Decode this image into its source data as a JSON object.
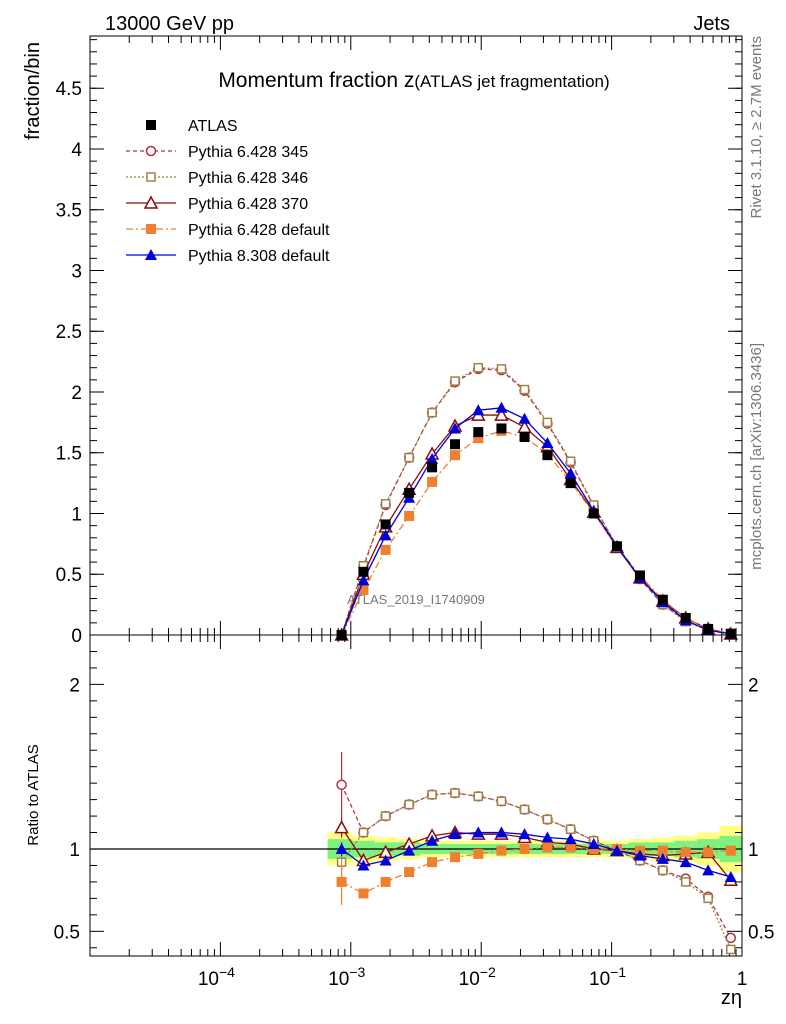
{
  "header": {
    "left": "13000 GeV pp",
    "right": "Jets"
  },
  "side": {
    "rivet": "Rivet 3.1.10, ≥ 2.7M events",
    "mcplots": "mcplots.cern.ch [arXiv:1306.3436]"
  },
  "watermark": "ATLAS_2019_I1740909",
  "colors": {
    "atlas": "#000000",
    "p345": "#b0303a",
    "p346": "#a0804a",
    "p370": "#8b0a0a",
    "p6def": "#f08030",
    "p8def": "#0000d8",
    "band_inner": "#80f080",
    "band_outer": "#ffff80"
  },
  "chart_data": [
    {
      "type": "scatter",
      "title_main": "Momentum fraction ",
      "title_z": "z",
      "title_sub": "(ATLAS jet fragmentation)",
      "ylabel": "fraction/bin",
      "xscale": "log",
      "xlim": [
        1e-05,
        1
      ],
      "ylim": [
        0,
        4.93
      ],
      "yticks": [
        "0",
        "0.5",
        "1",
        "1.5",
        "2",
        "2.5",
        "3",
        "3.5",
        "4",
        "4.5"
      ],
      "legend_position": "top-left",
      "x": [
        0.00085,
        0.00125,
        0.00185,
        0.0028,
        0.0042,
        0.0063,
        0.0095,
        0.0143,
        0.0215,
        0.0322,
        0.0485,
        0.073,
        0.11,
        0.165,
        0.247,
        0.37,
        0.55,
        0.82
      ],
      "series": [
        {
          "name": "ATLAS",
          "marker": "square-filled",
          "values": [
            0.0,
            0.52,
            0.91,
            1.17,
            1.38,
            1.57,
            1.67,
            1.7,
            1.63,
            1.48,
            1.25,
            1.0,
            0.73,
            0.49,
            0.29,
            0.14,
            0.05,
            0.01
          ]
        },
        {
          "name": "Pythia 6.428 345",
          "marker": "circle-open",
          "values": [
            0.0,
            0.56,
            1.07,
            1.46,
            1.83,
            2.08,
            2.19,
            2.18,
            2.01,
            1.74,
            1.42,
            1.06,
            0.73,
            0.46,
            0.25,
            0.12,
            0.04,
            0.005
          ]
        },
        {
          "name": "Pythia 6.428 346",
          "marker": "square-open",
          "values": [
            0.0,
            0.57,
            1.08,
            1.46,
            1.83,
            2.09,
            2.2,
            2.19,
            2.02,
            1.75,
            1.43,
            1.07,
            0.73,
            0.46,
            0.25,
            0.11,
            0.04,
            0.004
          ]
        },
        {
          "name": "Pythia 6.428 370",
          "marker": "triangle-open",
          "values": [
            0.0,
            0.5,
            0.89,
            1.2,
            1.49,
            1.72,
            1.81,
            1.81,
            1.71,
            1.55,
            1.28,
            1.01,
            0.72,
            0.47,
            0.28,
            0.14,
            0.05,
            0.008
          ]
        },
        {
          "name": "Pythia 6.428 default",
          "marker": "square-filled",
          "values": [
            0.0,
            0.37,
            0.7,
            0.98,
            1.26,
            1.48,
            1.62,
            1.68,
            1.63,
            1.49,
            1.26,
            1.0,
            0.73,
            0.49,
            0.29,
            0.14,
            0.05,
            0.01
          ]
        },
        {
          "name": "Pythia 8.308 default",
          "marker": "triangle-filled",
          "values": [
            0.0,
            0.45,
            0.82,
            1.13,
            1.45,
            1.7,
            1.85,
            1.87,
            1.78,
            1.58,
            1.33,
            1.02,
            0.73,
            0.47,
            0.27,
            0.12,
            0.04,
            0.008
          ]
        }
      ]
    },
    {
      "type": "scatter",
      "ylabel": "Ratio to ATLAS",
      "xlabel": "zη",
      "xscale": "log",
      "xlim": [
        1e-05,
        1
      ],
      "ylim": [
        0.35,
        2.3
      ],
      "yticks": [
        "0.5",
        "1",
        "2"
      ],
      "xticks_exp": [
        "−4",
        "−3",
        "−2",
        "−1"
      ],
      "xtick_last": "1",
      "xtick_base": "10",
      "x": [
        0.00085,
        0.00125,
        0.00185,
        0.0028,
        0.0042,
        0.0063,
        0.0095,
        0.0143,
        0.0215,
        0.0322,
        0.0485,
        0.073,
        0.11,
        0.165,
        0.247,
        0.37,
        0.55,
        0.82
      ],
      "band_inner": [
        0.06,
        0.05,
        0.04,
        0.04,
        0.03,
        0.03,
        0.03,
        0.03,
        0.03,
        0.03,
        0.03,
        0.03,
        0.03,
        0.04,
        0.04,
        0.05,
        0.06,
        0.08
      ],
      "band_outer": [
        0.1,
        0.08,
        0.07,
        0.06,
        0.05,
        0.05,
        0.05,
        0.05,
        0.05,
        0.05,
        0.05,
        0.05,
        0.05,
        0.06,
        0.07,
        0.08,
        0.1,
        0.14
      ],
      "series": [
        {
          "name": "Pythia 6.428 345",
          "values": [
            1.39,
            1.1,
            1.2,
            1.27,
            1.33,
            1.34,
            1.32,
            1.29,
            1.24,
            1.18,
            1.12,
            1.05,
            0.99,
            0.93,
            0.87,
            0.82,
            0.71,
            0.46
          ],
          "err_first": 0.2
        },
        {
          "name": "Pythia 6.428 346",
          "values": [
            0.92,
            1.1,
            1.2,
            1.27,
            1.33,
            1.34,
            1.32,
            1.29,
            1.24,
            1.18,
            1.12,
            1.05,
            0.99,
            0.93,
            0.87,
            0.8,
            0.7,
            0.39
          ],
          "err_first": 0.05
        },
        {
          "name": "Pythia 6.428 370",
          "values": [
            1.13,
            0.93,
            0.98,
            1.03,
            1.08,
            1.1,
            1.09,
            1.09,
            1.07,
            1.04,
            1.03,
            1.0,
            0.99,
            0.97,
            0.96,
            0.97,
            0.98,
            0.81
          ],
          "err_first": 0.06
        },
        {
          "name": "Pythia 6.428 default",
          "values": [
            0.8,
            0.73,
            0.8,
            0.86,
            0.92,
            0.95,
            0.97,
            0.99,
            1.0,
            1.01,
            1.01,
            1.0,
            1.0,
            0.99,
            0.99,
            0.98,
            0.98,
            0.99
          ],
          "err_first": 0.14
        },
        {
          "name": "Pythia 8.308 default",
          "values": [
            1.0,
            0.9,
            0.93,
            0.99,
            1.05,
            1.09,
            1.1,
            1.1,
            1.09,
            1.07,
            1.06,
            1.03,
            0.99,
            0.96,
            0.94,
            0.92,
            0.87,
            0.83
          ],
          "err_first": 0.04
        }
      ]
    }
  ]
}
